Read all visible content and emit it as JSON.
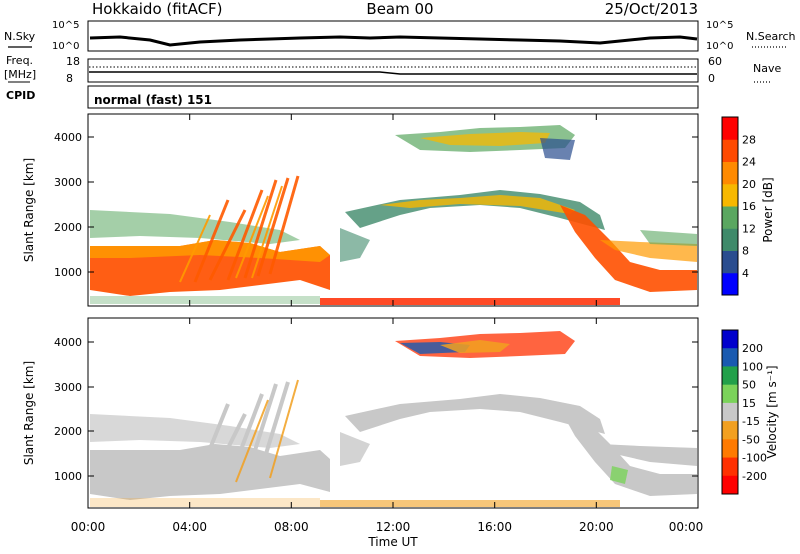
{
  "header": {
    "station": "Hokkaido (fitACF)",
    "beam": "Beam 00",
    "date": "25/Oct/2013"
  },
  "noise_panel": {
    "left_label": "N.Sky",
    "left_ticks": [
      "10^5",
      "10^0"
    ],
    "right_label": "N.Search",
    "right_ticks": [
      "10^5",
      "10^0"
    ]
  },
  "freq_panel": {
    "left_label_line1": "Freq.",
    "left_label_line2": "[MHz]",
    "left_ticks": [
      "18",
      "8"
    ],
    "right_label": "Nave",
    "right_ticks": [
      "60",
      "0"
    ]
  },
  "cpid": {
    "label": "CPID",
    "value": "normal (fast) 151"
  },
  "chart_data": [
    {
      "type": "heatmap",
      "title": "",
      "xlabel": "Time UT",
      "ylabel": "Slant Range [km]",
      "x_ticks": [
        "00:00",
        "04:00",
        "08:00",
        "12:00",
        "16:00",
        "20:00",
        "00:00"
      ],
      "y_ticks": [
        "1000",
        "2000",
        "3000",
        "4000"
      ],
      "xlim_hours": [
        0,
        24
      ],
      "ylim_km": [
        200,
        4500
      ],
      "colorbar": {
        "label": "Power [dB]",
        "ticks": [
          "4",
          "8",
          "12",
          "16",
          "20",
          "24",
          "28"
        ],
        "colors": [
          "#0000ff",
          "#2a4d8f",
          "#3f8a6a",
          "#5aa760",
          "#f7b800",
          "#ff8a00",
          "#ff4a00",
          "#ff0000"
        ]
      }
    },
    {
      "type": "heatmap",
      "title": "",
      "xlabel": "Time UT",
      "ylabel": "Slant Range [km]",
      "x_ticks": [
        "00:00",
        "04:00",
        "08:00",
        "12:00",
        "16:00",
        "20:00",
        "00:00"
      ],
      "y_ticks": [
        "1000",
        "2000",
        "3000",
        "4000"
      ],
      "xlim_hours": [
        0,
        24
      ],
      "ylim_km": [
        200,
        4500
      ],
      "colorbar": {
        "label": "Velocity [m s⁻¹]",
        "ticks": [
          "200",
          "100",
          "50",
          "15",
          "-15",
          "-50",
          "-100",
          "-200"
        ],
        "colors": [
          "#0000cc",
          "#1a5ab0",
          "#22a04a",
          "#7bd35a",
          "#c8c8c8",
          "#f2a020",
          "#ff7a00",
          "#ff3000",
          "#ff0000"
        ]
      }
    }
  ]
}
